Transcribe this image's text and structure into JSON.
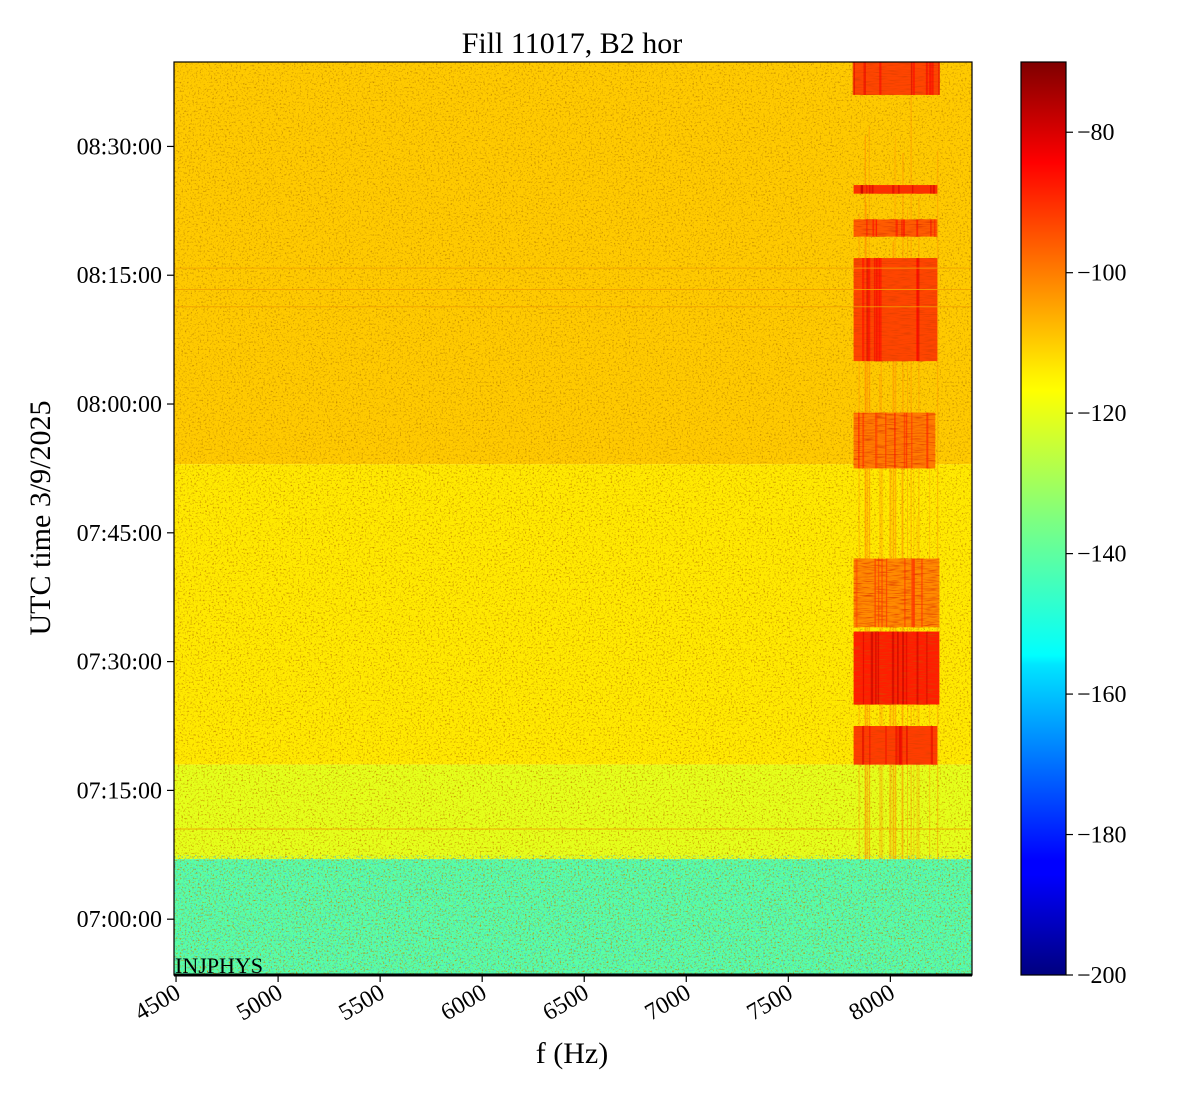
{
  "chart_data": {
    "type": "heatmap",
    "title": "Fill 11017, B2 hor",
    "xlabel": "f (Hz)",
    "ylabel": "UTC time 3/9/2025",
    "xlim": [
      4490,
      8400
    ],
    "ylim": [
      "06:53:30",
      "08:39:50"
    ],
    "x_ticks": [
      "4500",
      "5000",
      "5500",
      "6000",
      "6500",
      "7000",
      "7500",
      "8000"
    ],
    "y_ticks": [
      "07:00:00",
      "07:15:00",
      "07:30:00",
      "07:45:00",
      "08:00:00",
      "08:15:00",
      "08:30:00"
    ],
    "colorbar": {
      "colormap": "jet",
      "range": [
        -200,
        -70
      ],
      "ticks": [
        "−200",
        "−180",
        "−160",
        "−140",
        "−120",
        "−100",
        "−80"
      ]
    },
    "annotation": "INJPHYS",
    "background_levels_dB": [
      {
        "from": "06:53:30",
        "to": "07:07:00",
        "level": -140
      },
      {
        "from": "07:07:00",
        "to": "07:18:00",
        "level": -122
      },
      {
        "from": "07:18:00",
        "to": "07:53:00",
        "level": -116
      },
      {
        "from": "07:53:00",
        "to": "08:39:50",
        "level": -112
      }
    ],
    "line_band": {
      "f_range": [
        7820,
        8240
      ]
    },
    "bursts": [
      {
        "start": "07:18:00",
        "end": "07:22:30",
        "f_range": [
          7820,
          8230
        ],
        "level": -94
      },
      {
        "start": "07:25:00",
        "end": "07:33:30",
        "f_range": [
          7820,
          8240
        ],
        "level": -90
      },
      {
        "start": "07:34:00",
        "end": "07:42:00",
        "f_range": [
          7820,
          8240
        ],
        "level": -104
      },
      {
        "start": "07:52:30",
        "end": "07:59:00",
        "f_range": [
          7820,
          8220
        ],
        "level": -102
      },
      {
        "start": "08:05:00",
        "end": "08:17:00",
        "f_range": [
          7820,
          8230
        ],
        "level": -95
      },
      {
        "start": "08:19:30",
        "end": "08:21:30",
        "f_range": [
          7820,
          8230
        ],
        "level": -98
      },
      {
        "start": "08:24:30",
        "end": "08:25:30",
        "f_range": [
          7820,
          8230
        ],
        "level": -92
      },
      {
        "start": "08:36:00",
        "end": "08:39:50",
        "f_range": [
          7820,
          8240
        ],
        "level": -95
      }
    ],
    "horizontal_lines": [
      "07:10:30",
      "08:11:20",
      "08:13:20",
      "08:15:50"
    ],
    "grid": false
  }
}
